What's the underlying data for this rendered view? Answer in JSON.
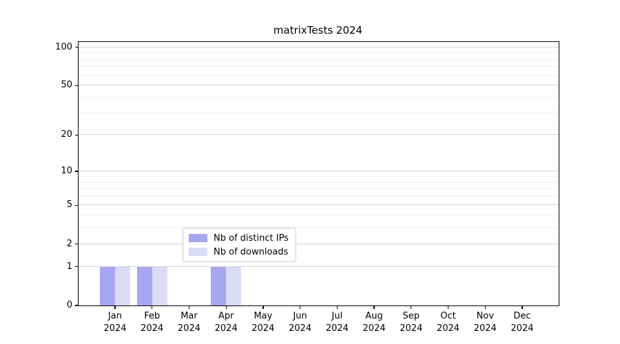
{
  "colors": {
    "distinct_ips": "#a6a6f2",
    "downloads": "#dbdbf7",
    "grid_major": "#d2d2d2",
    "grid_minor": "#efefef",
    "axis": "#000000",
    "background": "#ffffff"
  },
  "legend": {
    "items": [
      {
        "label": "Nb of distinct IPs",
        "color_key": "distinct_ips"
      },
      {
        "label": "Nb of downloads",
        "color_key": "downloads"
      }
    ]
  },
  "chart_data": {
    "type": "bar",
    "title": "matrixTests 2024",
    "categories": [
      "Jan 2024",
      "Feb 2024",
      "Mar 2024",
      "Apr 2024",
      "May 2024",
      "Jun 2024",
      "Jul 2024",
      "Aug 2024",
      "Sep 2024",
      "Oct 2024",
      "Nov 2024",
      "Dec 2024"
    ],
    "x_tick_labels": [
      {
        "month": "Jan",
        "year": "2024"
      },
      {
        "month": "Feb",
        "year": "2024"
      },
      {
        "month": "Mar",
        "year": "2024"
      },
      {
        "month": "Apr",
        "year": "2024"
      },
      {
        "month": "May",
        "year": "2024"
      },
      {
        "month": "Jun",
        "year": "2024"
      },
      {
        "month": "Jul",
        "year": "2024"
      },
      {
        "month": "Aug",
        "year": "2024"
      },
      {
        "month": "Sep",
        "year": "2024"
      },
      {
        "month": "Oct",
        "year": "2024"
      },
      {
        "month": "Nov",
        "year": "2024"
      },
      {
        "month": "Dec",
        "year": "2024"
      }
    ],
    "series": [
      {
        "name": "Nb of distinct IPs",
        "color_key": "distinct_ips",
        "values": [
          1,
          1,
          0,
          1,
          0,
          0,
          0,
          0,
          0,
          0,
          0,
          0
        ]
      },
      {
        "name": "Nb of downloads",
        "color_key": "downloads",
        "values": [
          1,
          1,
          0,
          1,
          0,
          0,
          0,
          0,
          0,
          0,
          0,
          0
        ]
      }
    ],
    "xlabel": "",
    "ylabel": "",
    "yscale": "log1p",
    "ylim": [
      0,
      110
    ],
    "y_ticks": [
      0,
      1,
      2,
      5,
      10,
      20,
      50,
      100
    ],
    "y_minor_gridlines": [
      3,
      4,
      6,
      7,
      8,
      9,
      30,
      40,
      60,
      70,
      80,
      90
    ],
    "grid": "horizontal major and minor",
    "legend_position": "lower center"
  }
}
